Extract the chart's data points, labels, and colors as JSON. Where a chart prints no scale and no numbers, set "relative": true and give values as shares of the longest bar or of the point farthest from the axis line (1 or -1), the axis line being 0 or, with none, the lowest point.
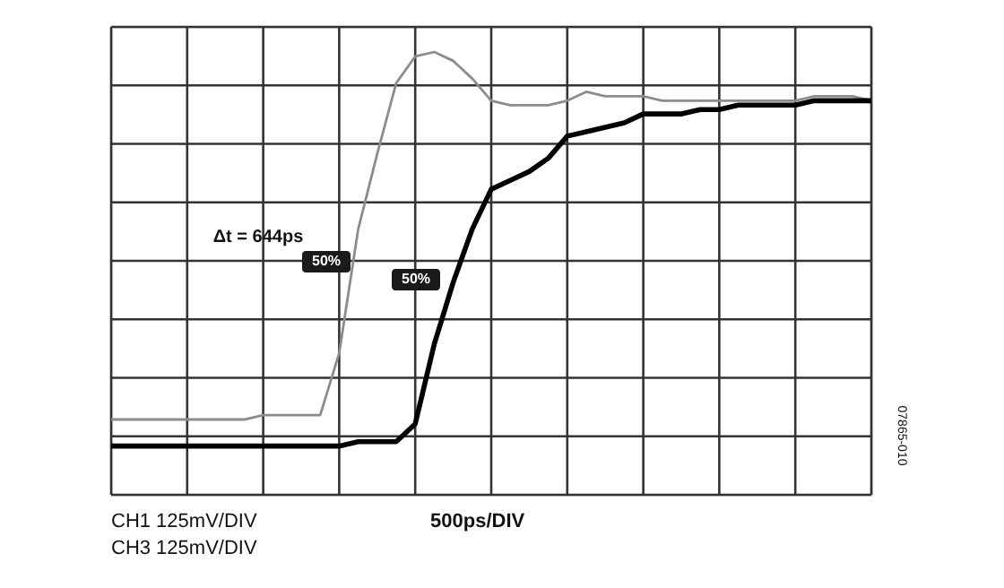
{
  "chart_data": {
    "type": "line",
    "relative": true,
    "grid": true,
    "marker": "none",
    "line_style": "solid",
    "categories": [
      null,
      null,
      null,
      null,
      null,
      null,
      null,
      null,
      null,
      null,
      null,
      null,
      null,
      null,
      null,
      null,
      null,
      null,
      null,
      null,
      null,
      null,
      null,
      null,
      null,
      null,
      null,
      null,
      null,
      null,
      null,
      null,
      null,
      null,
      null,
      null,
      null,
      null,
      null,
      null,
      null
    ],
    "series": [
      {
        "color": "#8c8c8c",
        "values": [
          0.17,
          0.17,
          0.17,
          0.17,
          0.17,
          0.17,
          0.17,
          0.17,
          0.18,
          0.18,
          0.18,
          0.18,
          0.32,
          0.6,
          0.77,
          0.93,
          0.99,
          1.0,
          0.98,
          0.94,
          0.89,
          0.88,
          0.88,
          0.88,
          0.89,
          0.91,
          0.9,
          0.9,
          0.9,
          0.89,
          0.89,
          0.89,
          0.89,
          0.89,
          0.89,
          0.89,
          0.89,
          0.9,
          0.9,
          0.9,
          0.89
        ]
      },
      {
        "color": "#000000",
        "values": [
          0.11,
          0.11,
          0.11,
          0.11,
          0.11,
          0.11,
          0.11,
          0.11,
          0.11,
          0.11,
          0.11,
          0.11,
          0.11,
          0.12,
          0.12,
          0.12,
          0.16,
          0.34,
          0.48,
          0.6,
          0.69,
          0.71,
          0.73,
          0.76,
          0.81,
          0.82,
          0.83,
          0.84,
          0.86,
          0.86,
          0.86,
          0.87,
          0.87,
          0.88,
          0.88,
          0.88,
          0.88,
          0.89,
          0.89,
          0.89,
          0.89
        ]
      }
    ],
    "annotations": [
      "Δt = 644ps",
      "50%",
      "50%",
      "CH1  125mV/DIV",
      "CH3  125mV/DIV",
      "500ps/DIV",
      "07865-010"
    ]
  }
}
